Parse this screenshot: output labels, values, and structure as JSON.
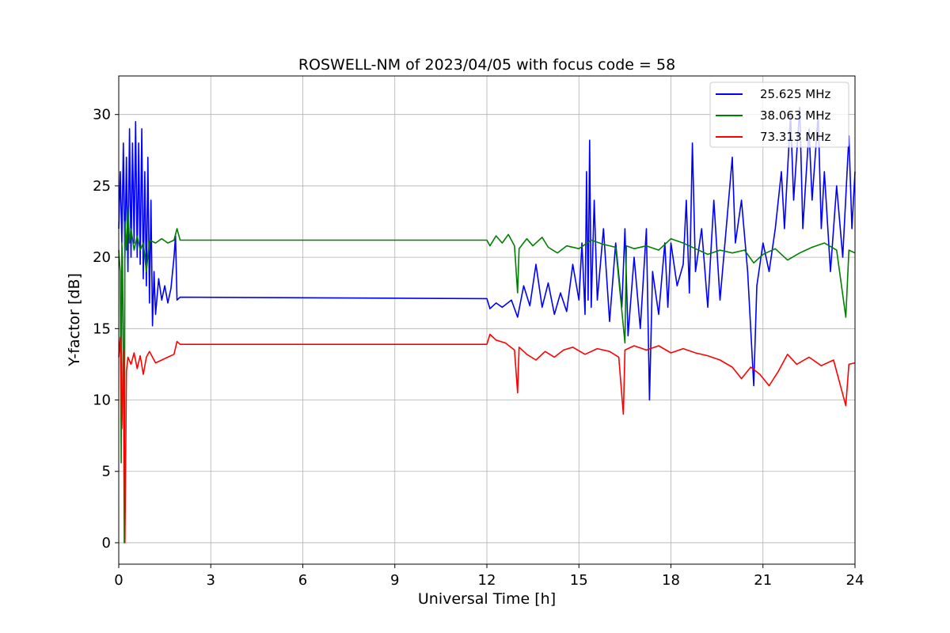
{
  "chart_data": {
    "type": "line",
    "title": "ROSWELL-NM of 2023/04/05 with focus code = 58",
    "xlabel": "Universal Time [h]",
    "ylabel": "Y-factor [dB]",
    "xlim": [
      0,
      24
    ],
    "ylim": [
      -1.5,
      32.7
    ],
    "xticks": [
      0,
      3,
      6,
      9,
      12,
      15,
      18,
      21,
      24
    ],
    "yticks": [
      0,
      5,
      10,
      15,
      20,
      25,
      30
    ],
    "grid": true,
    "legend_position": "top-right",
    "colors": {
      "blue": "#0000ff",
      "green": "#008000",
      "red": "#ff0000"
    },
    "series": [
      {
        "name": "25.625 MHz",
        "color": "#0000ff",
        "points": [
          [
            0,
            22
          ],
          [
            0.05,
            26
          ],
          [
            0.1,
            21
          ],
          [
            0.15,
            28
          ],
          [
            0.2,
            20
          ],
          [
            0.25,
            27
          ],
          [
            0.3,
            19
          ],
          [
            0.35,
            29
          ],
          [
            0.4,
            20
          ],
          [
            0.45,
            28
          ],
          [
            0.5,
            21
          ],
          [
            0.55,
            29.5
          ],
          [
            0.6,
            20
          ],
          [
            0.65,
            28
          ],
          [
            0.7,
            19.5
          ],
          [
            0.75,
            29
          ],
          [
            0.8,
            18.5
          ],
          [
            0.85,
            26
          ],
          [
            0.9,
            18
          ],
          [
            0.95,
            27
          ],
          [
            1.0,
            16.8
          ],
          [
            1.05,
            24
          ],
          [
            1.1,
            15.2
          ],
          [
            1.15,
            19
          ],
          [
            1.2,
            16
          ],
          [
            1.3,
            18.5
          ],
          [
            1.4,
            17
          ],
          [
            1.5,
            18
          ],
          [
            1.6,
            16.8
          ],
          [
            1.7,
            17.8
          ],
          [
            1.8,
            20
          ],
          [
            1.85,
            21.5
          ],
          [
            1.9,
            17
          ],
          [
            2.0,
            17.2
          ],
          [
            12.0,
            17.1
          ],
          [
            12.1,
            16.4
          ],
          [
            12.3,
            16.8
          ],
          [
            12.5,
            16.5
          ],
          [
            12.8,
            17
          ],
          [
            13.0,
            15.8
          ],
          [
            13.2,
            18
          ],
          [
            13.4,
            16.6
          ],
          [
            13.6,
            19.5
          ],
          [
            13.8,
            16.5
          ],
          [
            14.0,
            18.2
          ],
          [
            14.2,
            16
          ],
          [
            14.4,
            17.5
          ],
          [
            14.6,
            16.2
          ],
          [
            14.8,
            19.5
          ],
          [
            15.0,
            17
          ],
          [
            15.1,
            21
          ],
          [
            15.2,
            16
          ],
          [
            15.25,
            26
          ],
          [
            15.3,
            17
          ],
          [
            15.35,
            28.2
          ],
          [
            15.4,
            16.5
          ],
          [
            15.5,
            24
          ],
          [
            15.6,
            17
          ],
          [
            15.8,
            22
          ],
          [
            16.0,
            15.5
          ],
          [
            16.2,
            21
          ],
          [
            16.4,
            16.5
          ],
          [
            16.5,
            22
          ],
          [
            16.6,
            14.5
          ],
          [
            16.8,
            20
          ],
          [
            17.0,
            15
          ],
          [
            17.2,
            22
          ],
          [
            17.3,
            10
          ],
          [
            17.4,
            19
          ],
          [
            17.6,
            16
          ],
          [
            17.8,
            21
          ],
          [
            17.9,
            16.5
          ],
          [
            18.0,
            21
          ],
          [
            18.2,
            18
          ],
          [
            18.4,
            19.5
          ],
          [
            18.5,
            24
          ],
          [
            18.6,
            17.5
          ],
          [
            18.7,
            28
          ],
          [
            18.8,
            19
          ],
          [
            19.0,
            22
          ],
          [
            19.2,
            16.5
          ],
          [
            19.4,
            24
          ],
          [
            19.6,
            17
          ],
          [
            19.8,
            22
          ],
          [
            20.0,
            27
          ],
          [
            20.1,
            21
          ],
          [
            20.3,
            24
          ],
          [
            20.5,
            19
          ],
          [
            20.7,
            11
          ],
          [
            20.8,
            18
          ],
          [
            21.0,
            21
          ],
          [
            21.2,
            19
          ],
          [
            21.4,
            22
          ],
          [
            21.6,
            26
          ],
          [
            21.7,
            22
          ],
          [
            21.9,
            30
          ],
          [
            22.0,
            24
          ],
          [
            22.2,
            30.5
          ],
          [
            22.3,
            22
          ],
          [
            22.5,
            29
          ],
          [
            22.6,
            24
          ],
          [
            22.8,
            30
          ],
          [
            22.9,
            22
          ],
          [
            23.0,
            26
          ],
          [
            23.2,
            19
          ],
          [
            23.4,
            25
          ],
          [
            23.6,
            20
          ],
          [
            23.8,
            28.5
          ],
          [
            23.9,
            22
          ],
          [
            24.0,
            26
          ]
        ]
      },
      {
        "name": "38.063 MHz",
        "color": "#008000",
        "points": [
          [
            0,
            20.5
          ],
          [
            0.05,
            19
          ],
          [
            0.08,
            5.6
          ],
          [
            0.1,
            21
          ],
          [
            0.12,
            20
          ],
          [
            0.15,
            14
          ],
          [
            0.18,
            0
          ],
          [
            0.2,
            22.5
          ],
          [
            0.25,
            20.5
          ],
          [
            0.3,
            23.5
          ],
          [
            0.35,
            21
          ],
          [
            0.4,
            22
          ],
          [
            0.5,
            20.5
          ],
          [
            0.6,
            21.5
          ],
          [
            0.7,
            20.5
          ],
          [
            0.8,
            21
          ],
          [
            0.9,
            19
          ],
          [
            1.0,
            21.2
          ],
          [
            1.2,
            21
          ],
          [
            1.4,
            21.3
          ],
          [
            1.6,
            21
          ],
          [
            1.8,
            21.2
          ],
          [
            1.9,
            22
          ],
          [
            2.0,
            21.2
          ],
          [
            12.0,
            21.2
          ],
          [
            12.1,
            20.8
          ],
          [
            12.3,
            21.5
          ],
          [
            12.5,
            21
          ],
          [
            12.7,
            21.6
          ],
          [
            12.9,
            20.8
          ],
          [
            13.0,
            17.5
          ],
          [
            13.05,
            20.6
          ],
          [
            13.3,
            21.3
          ],
          [
            13.5,
            20.8
          ],
          [
            13.8,
            21.4
          ],
          [
            14.0,
            20.7
          ],
          [
            14.3,
            20.3
          ],
          [
            14.6,
            20.8
          ],
          [
            15.0,
            20.6
          ],
          [
            15.4,
            21.2
          ],
          [
            15.8,
            20.9
          ],
          [
            16.2,
            20.7
          ],
          [
            16.5,
            14
          ],
          [
            16.55,
            20.8
          ],
          [
            16.8,
            20.6
          ],
          [
            17.2,
            20.8
          ],
          [
            17.6,
            20.5
          ],
          [
            18.0,
            21.3
          ],
          [
            18.4,
            21
          ],
          [
            18.8,
            20.6
          ],
          [
            19.2,
            20.2
          ],
          [
            19.6,
            20.5
          ],
          [
            20.0,
            20.3
          ],
          [
            20.4,
            20.5
          ],
          [
            20.7,
            19.6
          ],
          [
            21.0,
            20.2
          ],
          [
            21.4,
            20.6
          ],
          [
            21.8,
            19.8
          ],
          [
            22.2,
            20.3
          ],
          [
            22.6,
            20.7
          ],
          [
            23.0,
            21
          ],
          [
            23.4,
            20.5
          ],
          [
            23.7,
            15.8
          ],
          [
            23.8,
            20.5
          ],
          [
            24.0,
            20.3
          ]
        ]
      },
      {
        "name": "73.313 MHz",
        "color": "#ff0000",
        "points": [
          [
            0,
            13
          ],
          [
            0.05,
            14.4
          ],
          [
            0.1,
            8
          ],
          [
            0.15,
            13.5
          ],
          [
            0.2,
            0
          ],
          [
            0.25,
            12
          ],
          [
            0.3,
            13
          ],
          [
            0.4,
            12.5
          ],
          [
            0.5,
            13.3
          ],
          [
            0.6,
            12.2
          ],
          [
            0.7,
            13.1
          ],
          [
            0.8,
            11.8
          ],
          [
            0.9,
            13
          ],
          [
            1.0,
            13.4
          ],
          [
            1.2,
            12.6
          ],
          [
            1.4,
            12.8
          ],
          [
            1.6,
            13
          ],
          [
            1.8,
            13.2
          ],
          [
            1.9,
            14.1
          ],
          [
            2.0,
            13.9
          ],
          [
            12.0,
            13.9
          ],
          [
            12.1,
            14.6
          ],
          [
            12.3,
            14.2
          ],
          [
            12.6,
            14
          ],
          [
            12.9,
            13.5
          ],
          [
            13.0,
            10.5
          ],
          [
            13.05,
            13.7
          ],
          [
            13.3,
            13.2
          ],
          [
            13.6,
            12.8
          ],
          [
            13.9,
            13.4
          ],
          [
            14.2,
            13
          ],
          [
            14.5,
            13.5
          ],
          [
            14.8,
            13.7
          ],
          [
            15.2,
            13.2
          ],
          [
            15.6,
            13.6
          ],
          [
            16.0,
            13.4
          ],
          [
            16.3,
            13
          ],
          [
            16.45,
            9
          ],
          [
            16.5,
            13.5
          ],
          [
            16.8,
            13.8
          ],
          [
            17.2,
            13.5
          ],
          [
            17.6,
            13.8
          ],
          [
            18.0,
            13.3
          ],
          [
            18.4,
            13.6
          ],
          [
            18.8,
            13.3
          ],
          [
            19.2,
            13.1
          ],
          [
            19.6,
            12.8
          ],
          [
            20.0,
            12.3
          ],
          [
            20.3,
            11.5
          ],
          [
            20.6,
            12.3
          ],
          [
            20.9,
            11.8
          ],
          [
            21.2,
            11
          ],
          [
            21.5,
            12
          ],
          [
            21.8,
            13.2
          ],
          [
            22.1,
            12.5
          ],
          [
            22.5,
            13
          ],
          [
            22.9,
            12.4
          ],
          [
            23.3,
            12.8
          ],
          [
            23.7,
            9.6
          ],
          [
            23.8,
            12.5
          ],
          [
            24.0,
            12.6
          ]
        ]
      }
    ]
  }
}
